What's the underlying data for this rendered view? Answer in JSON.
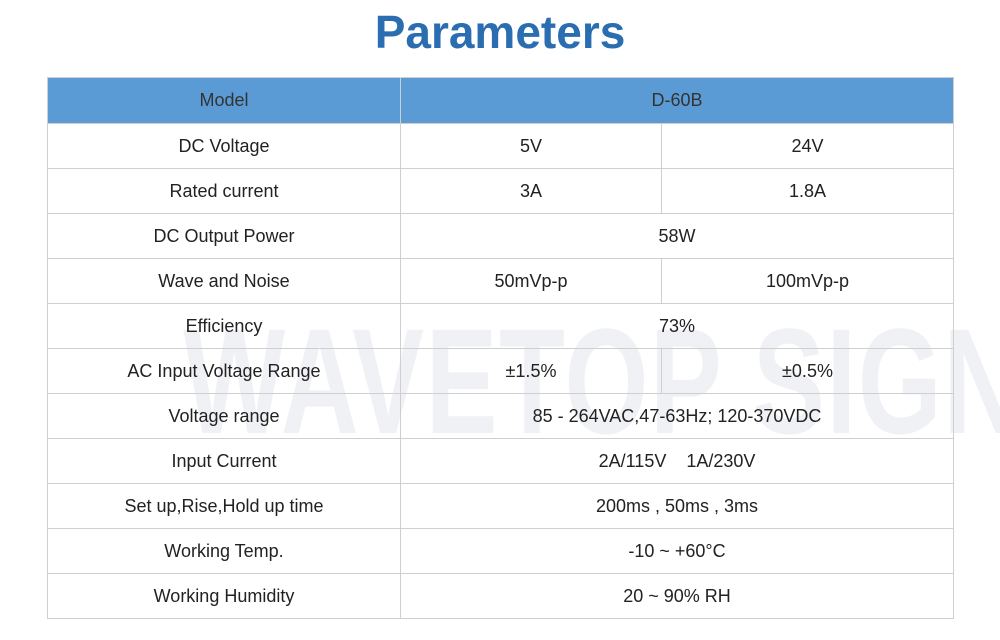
{
  "title": "Parameters",
  "watermark": "WAVETOP SIGN",
  "table": {
    "header": [
      "Model",
      "D-60B"
    ],
    "rows": [
      [
        "DC Voltage",
        "5V",
        "24V"
      ],
      [
        "Rated current",
        "3A",
        "1.8A"
      ],
      [
        "DC Output Power",
        "58W"
      ],
      [
        "Wave and Noise",
        "50mVp-p",
        "100mVp-p"
      ],
      [
        "Efficiency",
        "73%"
      ],
      [
        "AC Input Voltage Range",
        "±1.5%",
        "±0.5%"
      ],
      [
        "Voltage range",
        "85 - 264VAC,47-63Hz; 120-370VDC"
      ],
      [
        "Input Current",
        "2A/115V    1A/230V"
      ],
      [
        "Set up,Rise,Hold up time",
        "200ms , 50ms , 3ms"
      ],
      [
        "Working Temp.",
        "-10 ~ +60°C"
      ],
      [
        "Working Humidity",
        "20 ~ 90% RH"
      ]
    ]
  }
}
